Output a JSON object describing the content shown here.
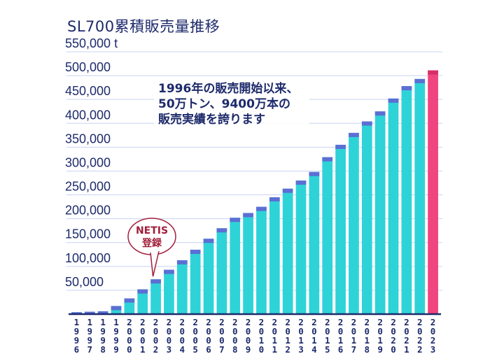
{
  "chart_data": {
    "type": "bar",
    "title": "SL700累積販売量推移",
    "ytick_labels": [
      "50,000",
      "100,000",
      "150,000",
      "200,000",
      "250,000",
      "300,000",
      "350,000",
      "400,000",
      "450,000",
      "500,000",
      "550,000 t"
    ],
    "yticks": [
      50000,
      100000,
      150000,
      200000,
      250000,
      300000,
      350000,
      400000,
      450000,
      500000,
      550000
    ],
    "ylim": [
      0,
      550000
    ],
    "grid": true,
    "categories": [
      "1996",
      "1997",
      "1998",
      "1999",
      "2000",
      "2001",
      "2002",
      "2003",
      "2004",
      "2005",
      "2006",
      "2007",
      "2008",
      "2009",
      "2010",
      "2011",
      "2012",
      "2013",
      "2014",
      "2015",
      "2016",
      "2017",
      "2018",
      "2019",
      "2020",
      "2021",
      "2022",
      "2023"
    ],
    "values": [
      4000,
      5000,
      6000,
      17000,
      33000,
      52000,
      73000,
      93000,
      113000,
      135000,
      158000,
      180000,
      202000,
      212000,
      225000,
      245000,
      263000,
      280000,
      298000,
      329000,
      355000,
      380000,
      404000,
      425000,
      452000,
      478000,
      493000,
      511000
    ],
    "colors": {
      "bar": "#2ed3d8",
      "bar_top": "#5b6fd4",
      "highlight": "#f0457e",
      "axis": "#1d2a6b",
      "grid": "#c7d3f2"
    },
    "highlight_index": 27,
    "annotations": [
      {
        "lines": [
          "1996年の販売開始以来、",
          "50万トン、9400万本の",
          "販売実績を誇ります"
        ]
      }
    ],
    "callout": {
      "lines": [
        "NETIS",
        "登録"
      ],
      "category": "2002"
    }
  }
}
